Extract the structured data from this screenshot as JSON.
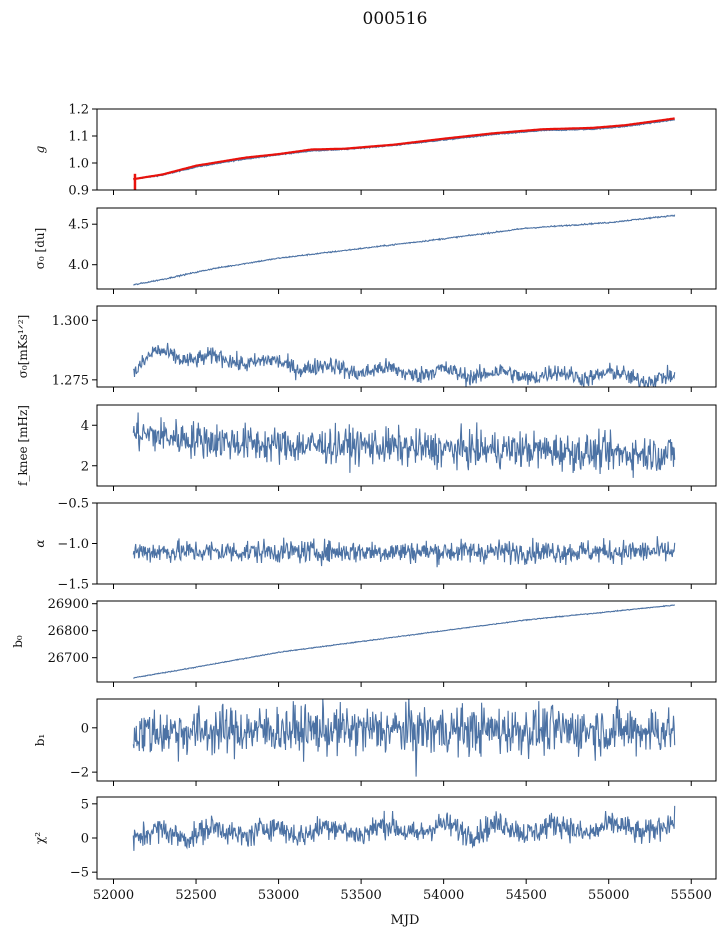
{
  "colors": {
    "series": "#4c72a4",
    "reference": "#e8120c",
    "axes": "#000000"
  },
  "chart_data": {
    "type": "line",
    "title": "000516",
    "xlabel": "MJD",
    "xlim": [
      51900,
      55650
    ],
    "xticks": [
      52000,
      52500,
      53000,
      53500,
      54000,
      54500,
      55000,
      55500
    ],
    "x_range": [
      52120,
      55400
    ],
    "grid": false,
    "panels": [
      {
        "key": "g",
        "ylabel": "g",
        "ylim": [
          0.9,
          1.2
        ],
        "yticks": [
          0.9,
          1.0,
          1.1,
          1.2
        ],
        "ytick_labels": [
          "0.9",
          "1.0",
          "1.1",
          "1.2"
        ],
        "series": [
          {
            "color": "#4c72a4",
            "points": [
              [
                52120,
                0.94
              ],
              [
                52300,
                0.955
              ],
              [
                52500,
                0.985
              ],
              [
                52800,
                1.015
              ],
              [
                53000,
                1.03
              ],
              [
                53200,
                1.045
              ],
              [
                53400,
                1.05
              ],
              [
                53700,
                1.065
              ],
              [
                54000,
                1.085
              ],
              [
                54300,
                1.105
              ],
              [
                54600,
                1.12
              ],
              [
                54900,
                1.125
              ],
              [
                55100,
                1.135
              ],
              [
                55400,
                1.16
              ]
            ]
          },
          {
            "color": "#e8120c",
            "points": [
              [
                52120,
                0.94
              ],
              [
                52300,
                0.958
              ],
              [
                52500,
                0.99
              ],
              [
                52800,
                1.02
              ],
              [
                53000,
                1.033
              ],
              [
                53200,
                1.05
              ],
              [
                53400,
                1.053
              ],
              [
                53700,
                1.068
              ],
              [
                54000,
                1.09
              ],
              [
                54300,
                1.11
              ],
              [
                54600,
                1.125
              ],
              [
                54900,
                1.13
              ],
              [
                55100,
                1.14
              ],
              [
                55400,
                1.165
              ]
            ]
          }
        ]
      },
      {
        "key": "sigma0",
        "ylabel": "σ₀ [du]",
        "ylim": [
          3.7,
          4.7
        ],
        "yticks": [
          4.0,
          4.5
        ],
        "ytick_labels": [
          "4.0",
          "4.5"
        ],
        "series": [
          {
            "color": "#4c72a4",
            "points": [
              [
                52120,
                3.75
              ],
              [
                52300,
                3.82
              ],
              [
                52600,
                3.95
              ],
              [
                53000,
                4.08
              ],
              [
                53500,
                4.2
              ],
              [
                54000,
                4.32
              ],
              [
                54500,
                4.45
              ],
              [
                55000,
                4.52
              ],
              [
                55400,
                4.61
              ]
            ]
          }
        ]
      },
      {
        "key": "sigma0_mks",
        "ylabel": "σ₀[mKs¹ᐟ²]",
        "ylim": [
          1.272,
          1.306
        ],
        "yticks": [
          1.275,
          1.3
        ],
        "ytick_labels": [
          "1.275",
          "1.300"
        ],
        "series": [
          {
            "color": "#4c72a4",
            "points": [
              [
                52120,
                1.279
              ],
              [
                52250,
                1.286
              ],
              [
                52500,
                1.284
              ],
              [
                52800,
                1.283
              ],
              [
                53100,
                1.281
              ],
              [
                53500,
                1.279
              ],
              [
                54000,
                1.278
              ],
              [
                54500,
                1.277
              ],
              [
                55000,
                1.277
              ],
              [
                55400,
                1.275
              ]
            ]
          }
        ]
      },
      {
        "key": "fknee",
        "ylabel": "f_knee [mHz]",
        "ylim": [
          1.0,
          5.0
        ],
        "yticks": [
          2,
          4
        ],
        "ytick_labels": [
          "2",
          "4"
        ],
        "series": [
          {
            "color": "#4c72a4",
            "points": [
              [
                52120,
                3.6
              ],
              [
                52500,
                3.3
              ],
              [
                53000,
                3.0
              ],
              [
                53500,
                3.0
              ],
              [
                54000,
                2.8
              ],
              [
                54500,
                2.8
              ],
              [
                55000,
                2.6
              ],
              [
                55400,
                2.6
              ]
            ]
          }
        ]
      },
      {
        "key": "alpha",
        "ylabel": "α",
        "ylim": [
          -1.5,
          -0.5
        ],
        "yticks": [
          -1.5,
          -1.0,
          -0.5
        ],
        "ytick_labels": [
          "−1.5",
          "−1.0",
          "−0.5"
        ],
        "series": [
          {
            "color": "#4c72a4",
            "points": [
              [
                52120,
                -1.1
              ],
              [
                53000,
                -1.1
              ],
              [
                54000,
                -1.1
              ],
              [
                55400,
                -1.1
              ]
            ]
          }
        ]
      },
      {
        "key": "b0",
        "ylabel": "b₀",
        "ylim": [
          26610,
          26910
        ],
        "yticks": [
          26700,
          26800,
          26900
        ],
        "ytick_labels": [
          "26700",
          "26800",
          "26900"
        ],
        "series": [
          {
            "color": "#4c72a4",
            "points": [
              [
                52120,
                26625
              ],
              [
                52500,
                26665
              ],
              [
                53000,
                26720
              ],
              [
                53500,
                26760
              ],
              [
                54000,
                26800
              ],
              [
                54500,
                26840
              ],
              [
                55000,
                26870
              ],
              [
                55400,
                26895
              ]
            ]
          }
        ]
      },
      {
        "key": "b1",
        "ylabel": "b₁",
        "ylim": [
          -2.4,
          1.3
        ],
        "yticks": [
          -2,
          0
        ],
        "ytick_labels": [
          "−2",
          "0"
        ],
        "series": [
          {
            "color": "#4c72a4",
            "points": [
              [
                52120,
                -0.2
              ],
              [
                53000,
                -0.1
              ],
              [
                54000,
                -0.1
              ],
              [
                55400,
                -0.1
              ]
            ]
          }
        ]
      },
      {
        "key": "chi2",
        "ylabel": "χ²",
        "ylim": [
          -6.0,
          6.0
        ],
        "yticks": [
          -5,
          0,
          5
        ],
        "ytick_labels": [
          "−5",
          "0",
          "5"
        ],
        "series": [
          {
            "color": "#4c72a4",
            "points": [
              [
                52120,
                0.3
              ],
              [
                52500,
                0.8
              ],
              [
                53000,
                1.0
              ],
              [
                53500,
                1.2
              ],
              [
                54000,
                1.3
              ],
              [
                54500,
                1.4
              ],
              [
                55000,
                1.3
              ],
              [
                55400,
                1.5
              ]
            ]
          }
        ]
      }
    ]
  }
}
